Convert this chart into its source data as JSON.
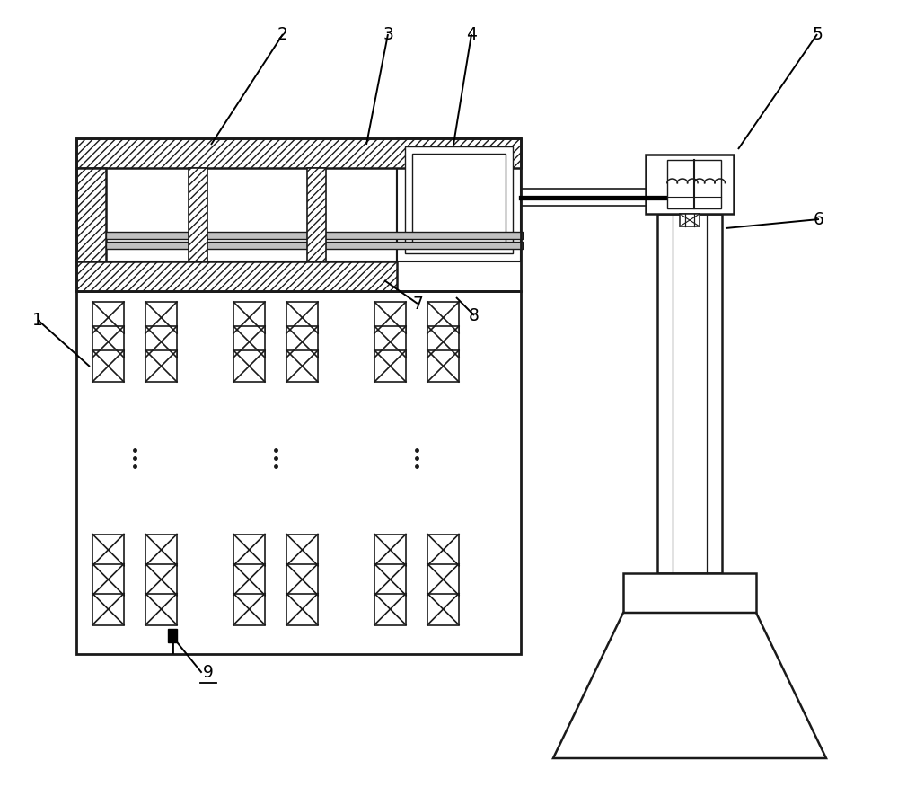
{
  "bg_color": "#ffffff",
  "line_color": "#1a1a1a",
  "figsize": [
    10.0,
    8.87
  ],
  "dpi": 100,
  "xlim": [
    0,
    10
  ],
  "ylim": [
    0,
    8.87
  ]
}
